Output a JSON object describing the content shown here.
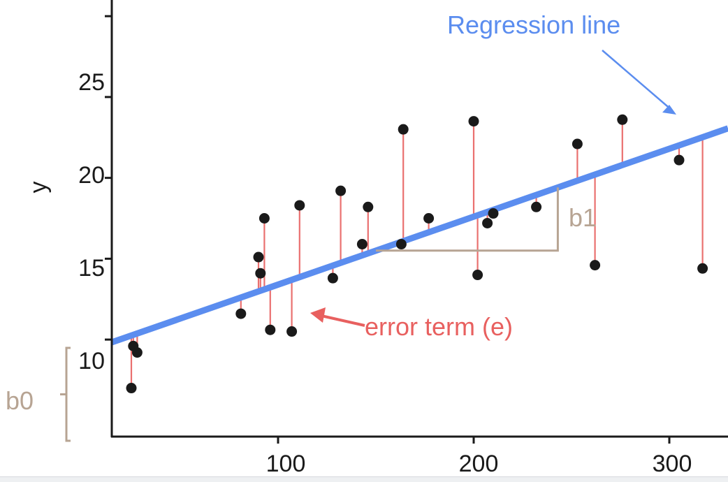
{
  "chart_data": {
    "type": "scatter",
    "xlabel": "",
    "ylabel": "y",
    "xlim": [
      15,
      330
    ],
    "ylim": [
      4,
      31
    ],
    "x_ticks": [
      "100",
      "200",
      "300"
    ],
    "y_ticks": [
      "10",
      "15",
      "20",
      "25"
    ],
    "regression": {
      "intercept": 9.2,
      "slope": 0.042
    },
    "points": [
      {
        "x": 25,
        "y": 7.0
      },
      {
        "x": 26,
        "y": 9.6
      },
      {
        "x": 28,
        "y": 9.2
      },
      {
        "x": 81,
        "y": 11.6
      },
      {
        "x": 90,
        "y": 15.1
      },
      {
        "x": 91,
        "y": 14.1
      },
      {
        "x": 93,
        "y": 17.5
      },
      {
        "x": 96,
        "y": 10.6
      },
      {
        "x": 107,
        "y": 10.5
      },
      {
        "x": 111,
        "y": 18.3
      },
      {
        "x": 128,
        "y": 13.8
      },
      {
        "x": 132,
        "y": 19.2
      },
      {
        "x": 143,
        "y": 15.9
      },
      {
        "x": 146,
        "y": 18.2
      },
      {
        "x": 163,
        "y": 15.9
      },
      {
        "x": 164,
        "y": 23.0
      },
      {
        "x": 177,
        "y": 17.5
      },
      {
        "x": 200,
        "y": 23.5
      },
      {
        "x": 202,
        "y": 14.0
      },
      {
        "x": 207,
        "y": 17.2
      },
      {
        "x": 210,
        "y": 17.8
      },
      {
        "x": 232,
        "y": 18.2
      },
      {
        "x": 253,
        "y": 22.1
      },
      {
        "x": 262,
        "y": 14.6
      },
      {
        "x": 276,
        "y": 23.6
      },
      {
        "x": 305,
        "y": 21.1
      },
      {
        "x": 317,
        "y": 14.4
      }
    ],
    "annotations": {
      "regression_label": "Regression line",
      "error_label": "error term (e)",
      "slope_label": "b1",
      "intercept_label": "b0"
    },
    "colors": {
      "regression": "#5b8def",
      "residual": "#e8605f",
      "point": "#1a1a1a",
      "bracket": "#b7a493"
    }
  }
}
